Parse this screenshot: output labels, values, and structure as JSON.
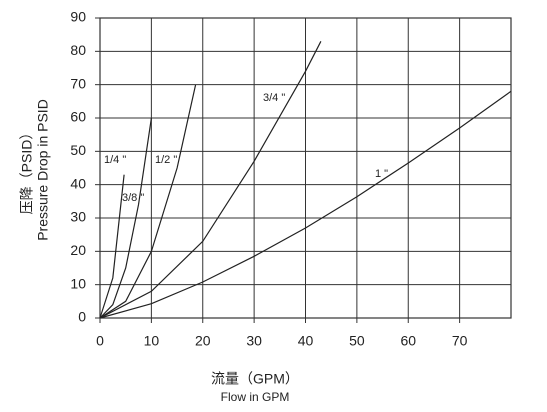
{
  "chart_data": {
    "type": "line",
    "x_label_cn": "流量（GPM）",
    "x_label": "Flow in GPM",
    "y_label_cn": "压降（PSID）",
    "y_label": "Pressure Drop in PSID",
    "xlim": [
      0,
      80
    ],
    "xticks": [
      0,
      10,
      20,
      30,
      40,
      50,
      60,
      70
    ],
    "ylim": [
      0,
      90
    ],
    "yticks": [
      0,
      10,
      20,
      30,
      40,
      50,
      60,
      70,
      80,
      90
    ],
    "grid": true,
    "color": "#222222",
    "series": [
      {
        "name": "1/4 \"",
        "x": [
          0,
          2.5,
          4.7
        ],
        "values": [
          0,
          12,
          43
        ]
      },
      {
        "name": "3/8 \"",
        "x": [
          0,
          2.5,
          5,
          7.5,
          10
        ],
        "values": [
          0,
          4,
          15,
          34,
          60
        ]
      },
      {
        "name": "1/2 \"",
        "x": [
          0,
          5,
          10,
          15,
          18.6
        ],
        "values": [
          0,
          5,
          20,
          45,
          70
        ]
      },
      {
        "name": "3/4 \"",
        "x": [
          0,
          10,
          20,
          30,
          40,
          43
        ],
        "values": [
          0,
          8,
          23,
          47,
          74,
          83
        ]
      },
      {
        "name": "1 \"",
        "x": [
          0,
          10,
          20,
          30,
          40,
          50,
          60,
          70,
          80
        ],
        "values": [
          0,
          4.3,
          10.8,
          18.5,
          27,
          36.4,
          46.5,
          57,
          68
        ]
      }
    ]
  }
}
